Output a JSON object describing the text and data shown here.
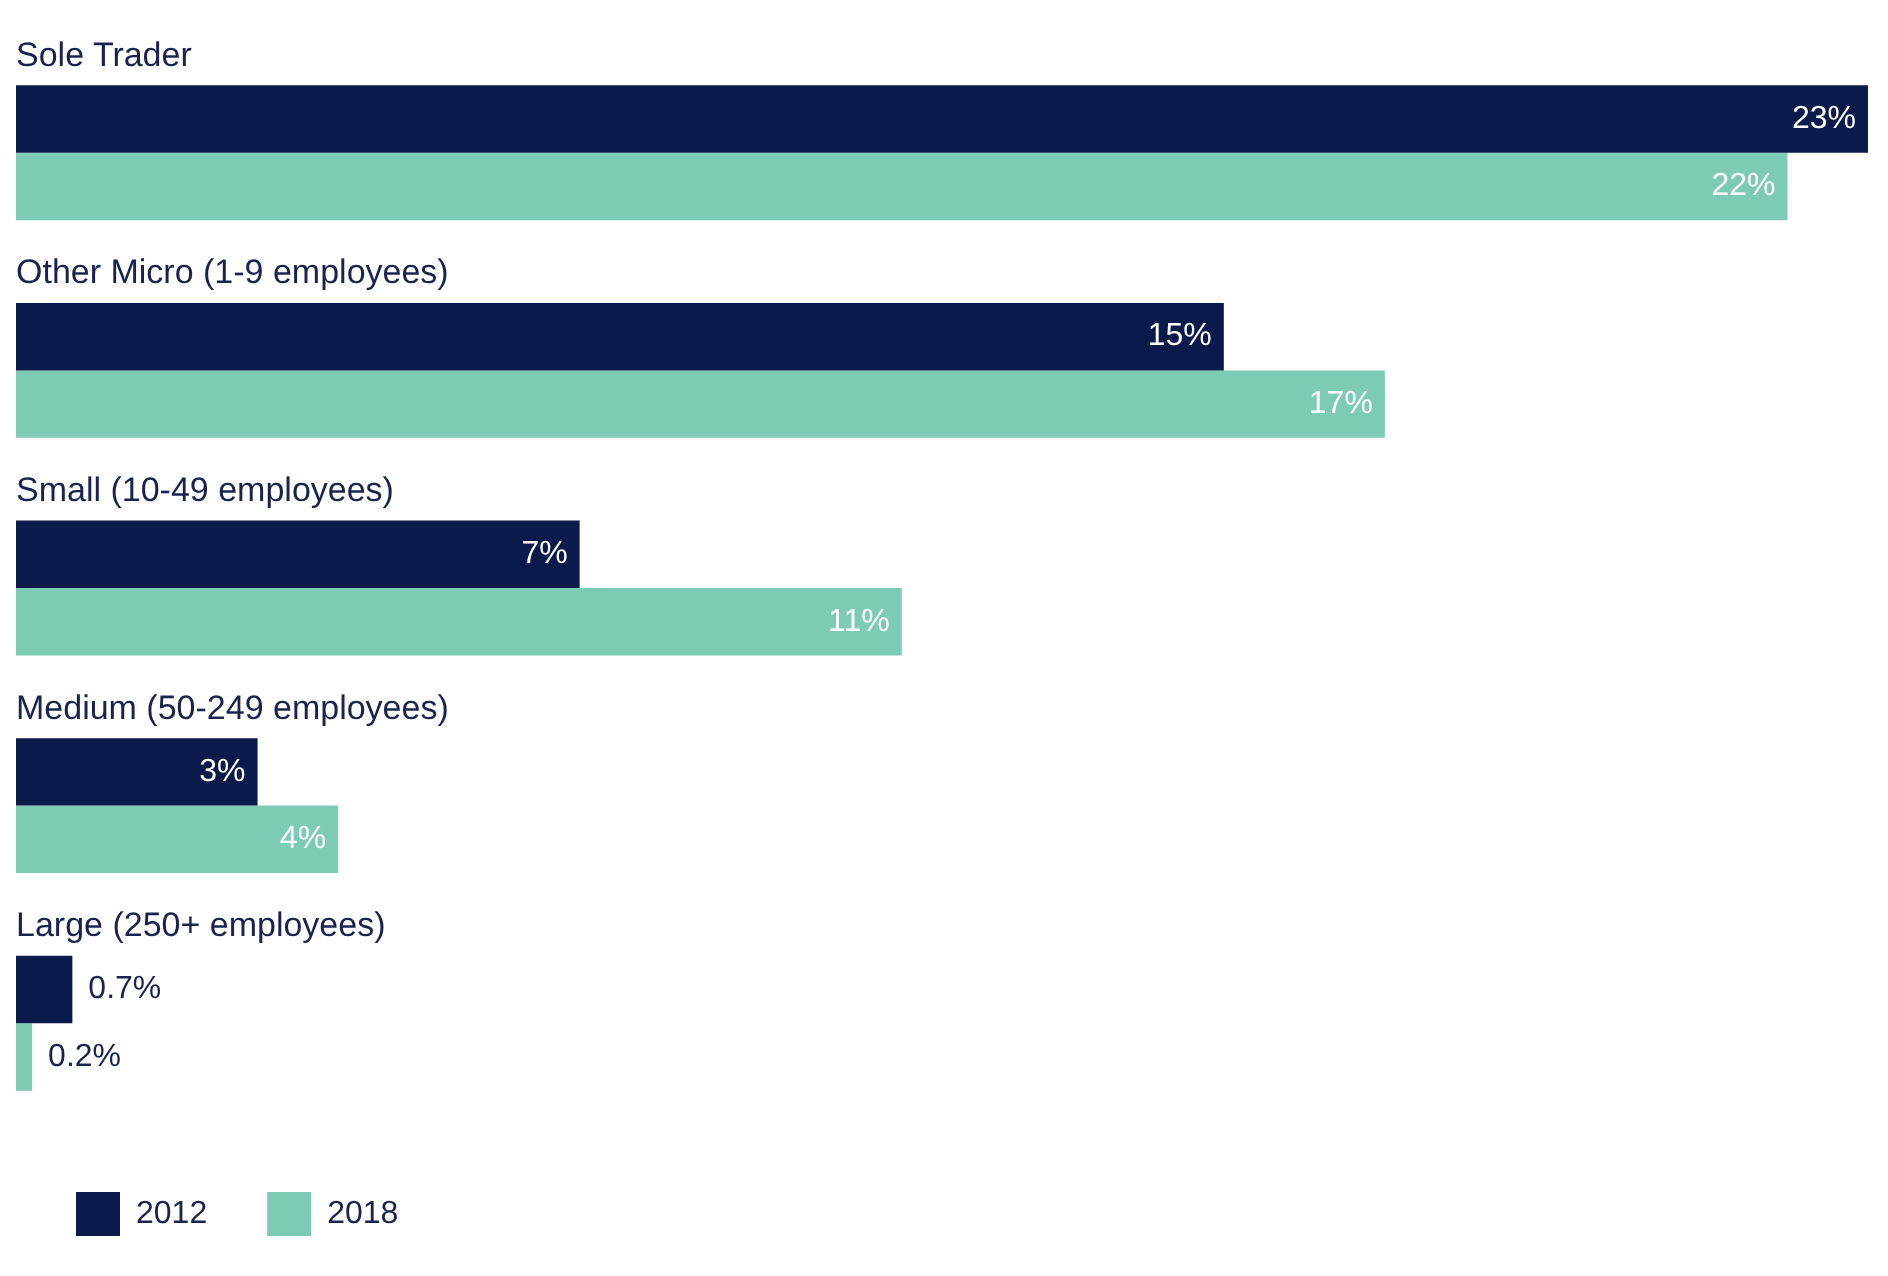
{
  "chart_data": {
    "type": "bar",
    "orientation": "horizontal",
    "categories": [
      "Sole Trader",
      "Other Micro (1-9 employees)",
      "Small (10-49 employees)",
      "Medium (50-249 employees)",
      "Large (250+ employees)"
    ],
    "series": [
      {
        "name": "2012",
        "color": "#0a1a4a",
        "values": [
          23,
          15,
          7,
          3,
          0.7
        ],
        "value_labels": [
          "23%",
          "15%",
          "7%",
          "3%",
          "0.7%"
        ]
      },
      {
        "name": "2018",
        "color": "#7ecbb5",
        "values": [
          22,
          17,
          11,
          4,
          0.2
        ],
        "value_labels": [
          "22%",
          "17%",
          "11%",
          "4%",
          "0.2%"
        ]
      }
    ],
    "xlim": [
      0,
      23
    ],
    "legend": "bottom left"
  }
}
